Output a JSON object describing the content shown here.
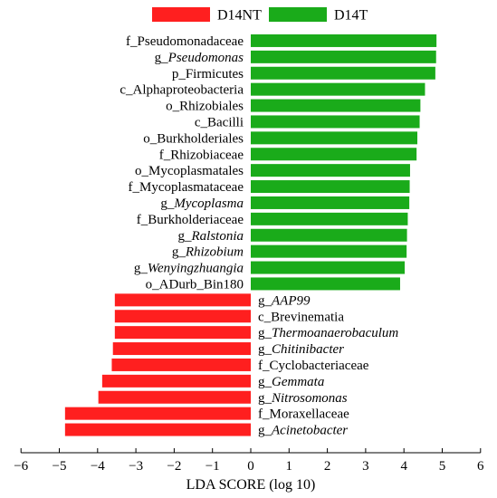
{
  "chart_data": {
    "type": "bar",
    "orientation": "horizontal",
    "xlabel": "LDA SCORE (log 10)",
    "xlim": [
      -6,
      6
    ],
    "xticks": [
      -6,
      -5,
      -4,
      -3,
      -2,
      -1,
      0,
      1,
      2,
      3,
      4,
      5,
      6
    ],
    "grid": false,
    "legend_position": "top",
    "series": [
      {
        "name": "D14NT",
        "color": "#ff1f1f"
      },
      {
        "name": "D14T",
        "color": "#1aab1a"
      }
    ],
    "bars": [
      {
        "prefix": "f_",
        "name": "Pseudomonadaceae",
        "italic": false,
        "value": 4.85,
        "group": "D14T"
      },
      {
        "prefix": "g_",
        "name": "Pseudomonas",
        "italic": true,
        "value": 4.84,
        "group": "D14T"
      },
      {
        "prefix": "p_",
        "name": "Firmicutes",
        "italic": false,
        "value": 4.82,
        "group": "D14T"
      },
      {
        "prefix": "c_",
        "name": "Alphaproteobacteria",
        "italic": false,
        "value": 4.55,
        "group": "D14T"
      },
      {
        "prefix": "o_",
        "name": "Rhizobiales",
        "italic": false,
        "value": 4.43,
        "group": "D14T"
      },
      {
        "prefix": "c_",
        "name": "Bacilli",
        "italic": false,
        "value": 4.41,
        "group": "D14T"
      },
      {
        "prefix": "o_",
        "name": "Burkholderiales",
        "italic": false,
        "value": 4.35,
        "group": "D14T"
      },
      {
        "prefix": "f_",
        "name": "Rhizobiaceae",
        "italic": false,
        "value": 4.33,
        "group": "D14T"
      },
      {
        "prefix": "o_",
        "name": "Mycoplasmatales",
        "italic": false,
        "value": 4.16,
        "group": "D14T"
      },
      {
        "prefix": "f_",
        "name": "Mycoplasmataceae",
        "italic": false,
        "value": 4.15,
        "group": "D14T"
      },
      {
        "prefix": "g_",
        "name": "Mycoplasma",
        "italic": true,
        "value": 4.14,
        "group": "D14T"
      },
      {
        "prefix": "f_",
        "name": "Burkholderiaceae",
        "italic": false,
        "value": 4.1,
        "group": "D14T"
      },
      {
        "prefix": "g_",
        "name": "Ralstonia",
        "italic": true,
        "value": 4.08,
        "group": "D14T"
      },
      {
        "prefix": "g_",
        "name": "Rhizobium",
        "italic": true,
        "value": 4.07,
        "group": "D14T"
      },
      {
        "prefix": "g_",
        "name": "Wenyingzhuangia",
        "italic": true,
        "value": 4.02,
        "group": "D14T"
      },
      {
        "prefix": "o_",
        "name": "ADurb_Bin180",
        "italic": false,
        "value": 3.9,
        "group": "D14T"
      },
      {
        "prefix": "g_",
        "name": "AAP99",
        "italic": true,
        "value": -3.55,
        "group": "D14NT"
      },
      {
        "prefix": "c_",
        "name": "Brevinematia",
        "italic": false,
        "value": -3.55,
        "group": "D14NT"
      },
      {
        "prefix": "g_",
        "name": "Thermoanaerobaculum",
        "italic": true,
        "value": -3.55,
        "group": "D14NT"
      },
      {
        "prefix": "g_",
        "name": "Chitinibacter",
        "italic": true,
        "value": -3.6,
        "group": "D14NT"
      },
      {
        "prefix": "f_",
        "name": "Cyclobacteriaceae",
        "italic": false,
        "value": -3.63,
        "group": "D14NT"
      },
      {
        "prefix": "g_",
        "name": "Gemmata",
        "italic": true,
        "value": -3.88,
        "group": "D14NT"
      },
      {
        "prefix": "g_",
        "name": "Nitrosomonas",
        "italic": true,
        "value": -3.98,
        "group": "D14NT"
      },
      {
        "prefix": "f_",
        "name": "Moraxellaceae",
        "italic": false,
        "value": -4.85,
        "group": "D14NT"
      },
      {
        "prefix": "g_",
        "name": "Acinetobacter",
        "italic": true,
        "value": -4.85,
        "group": "D14NT"
      }
    ]
  }
}
